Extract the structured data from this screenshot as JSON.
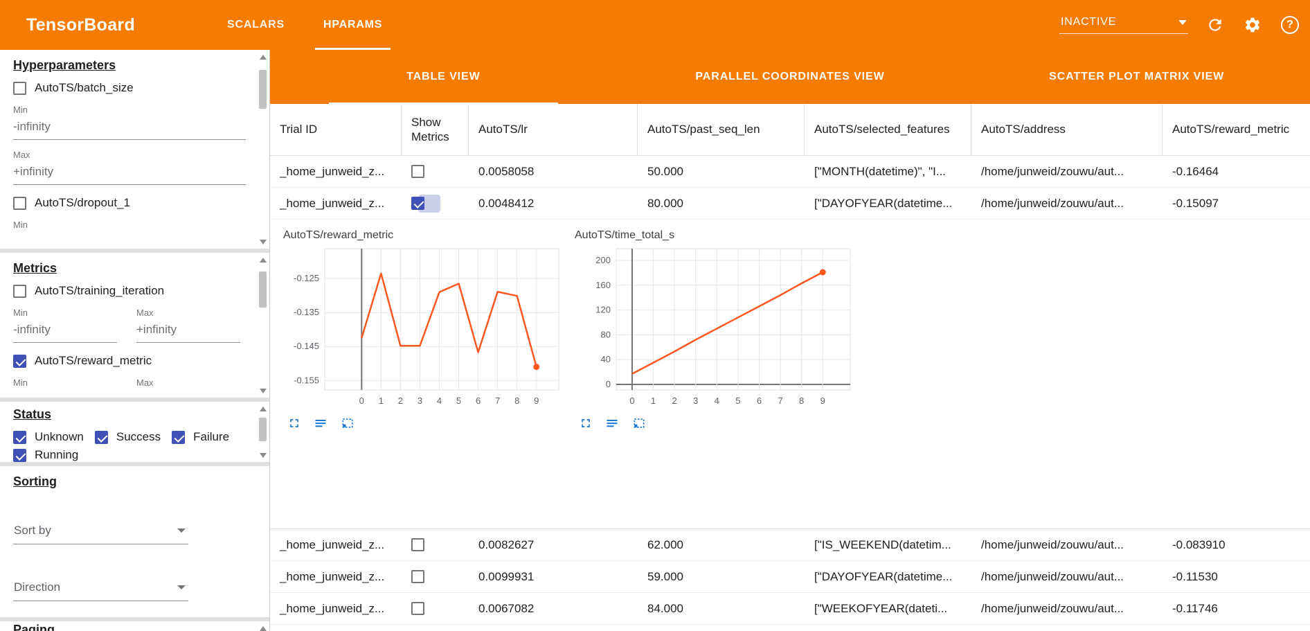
{
  "app": {
    "title": "TensorBoard",
    "nav_tabs": [
      {
        "label": "SCALARS",
        "active": false
      },
      {
        "label": "HPARAMS",
        "active": true
      }
    ],
    "run_status": {
      "value": "INACTIVE"
    }
  },
  "sidebar": {
    "hyperparameters": {
      "heading": "Hyperparameters",
      "min_label": "Min",
      "max_label": "Max",
      "min_placeholder": "-infinity",
      "max_placeholder": "+infinity",
      "items": [
        {
          "label": "AutoTS/batch_size",
          "checked": false
        },
        {
          "label": "AutoTS/dropout_1",
          "checked": false
        }
      ]
    },
    "metrics": {
      "heading": "Metrics",
      "min_label": "Min",
      "max_label": "Max",
      "min_placeholder": "-infinity",
      "max_placeholder": "+infinity",
      "items": [
        {
          "label": "AutoTS/training_iteration",
          "checked": false
        },
        {
          "label": "AutoTS/reward_metric",
          "checked": true
        }
      ]
    },
    "status": {
      "heading": "Status",
      "items": [
        {
          "label": "Unknown",
          "checked": true
        },
        {
          "label": "Success",
          "checked": true
        },
        {
          "label": "Failure",
          "checked": true
        },
        {
          "label": "Running",
          "checked": true
        }
      ]
    },
    "sorting": {
      "heading": "Sorting",
      "sort_by_label": "Sort by",
      "direction_label": "Direction"
    },
    "paging": {
      "heading": "Paging"
    }
  },
  "main": {
    "view_tabs": [
      {
        "label": "TABLE VIEW",
        "active": true
      },
      {
        "label": "PARALLEL COORDINATES VIEW",
        "active": false
      },
      {
        "label": "SCATTER PLOT MATRIX VIEW",
        "active": false
      }
    ],
    "table": {
      "columns": [
        "Trial ID",
        "Show Metrics",
        "AutoTS/lr",
        "AutoTS/past_seq_len",
        "AutoTS/selected_features",
        "AutoTS/address",
        "AutoTS/reward_metric"
      ],
      "rows": [
        {
          "trial_id": "_home_junweid_z...",
          "show_metrics": false,
          "lr": "0.0058058",
          "past_seq_len": "50.000",
          "selected_features": "[\"MONTH(datetime)\", \"I...",
          "address": "/home/junweid/zouwu/aut...",
          "reward_metric": "-0.16464"
        },
        {
          "trial_id": "_home_junweid_z...",
          "show_metrics": true,
          "lr": "0.0048412",
          "past_seq_len": "80.000",
          "selected_features": "[\"DAYOFYEAR(datetime...",
          "address": "/home/junweid/zouwu/aut...",
          "reward_metric": "-0.15097"
        },
        {
          "trial_id": "_home_junweid_z...",
          "show_metrics": false,
          "lr": "0.0082627",
          "past_seq_len": "62.000",
          "selected_features": "[\"IS_WEEKEND(datetim...",
          "address": "/home/junweid/zouwu/aut...",
          "reward_metric": "-0.083910"
        },
        {
          "trial_id": "_home_junweid_z...",
          "show_metrics": false,
          "lr": "0.0099931",
          "past_seq_len": "59.000",
          "selected_features": "[\"DAYOFYEAR(datetime...",
          "address": "/home/junweid/zouwu/aut...",
          "reward_metric": "-0.11530"
        },
        {
          "trial_id": "_home_junweid_z...",
          "show_metrics": false,
          "lr": "0.0067082",
          "past_seq_len": "84.000",
          "selected_features": "[\"WEEKOFYEAR(dateti...",
          "address": "/home/junweid/zouwu/aut...",
          "reward_metric": "-0.11746"
        }
      ]
    }
  },
  "chart_data": [
    {
      "type": "line",
      "title": "AutoTS/reward_metric",
      "x": [
        0,
        1,
        2,
        3,
        4,
        5,
        6,
        7,
        8,
        9
      ],
      "values": [
        -0.1425,
        -0.1235,
        -0.1448,
        -0.1448,
        -0.129,
        -0.1265,
        -0.1467,
        -0.1289,
        -0.1301,
        -0.151
      ],
      "xticks": [
        0,
        1,
        2,
        3,
        4,
        5,
        6,
        7,
        8,
        9
      ],
      "yticks": [
        -0.125,
        -0.135,
        -0.145,
        -0.155
      ],
      "xlim": [
        -1.9,
        10.15
      ],
      "ylim": [
        -0.1578,
        -0.1162
      ],
      "xlabel": "",
      "ylabel": "",
      "grid": true,
      "legend": "none",
      "end_marker": true,
      "line_color": "#ff5722"
    },
    {
      "type": "line",
      "title": "AutoTS/time_total_s",
      "x": [
        0,
        1,
        2,
        3,
        4,
        5,
        6,
        7,
        8,
        9
      ],
      "values": [
        17,
        35,
        53,
        72,
        90,
        108,
        126,
        144,
        163,
        181
      ],
      "xticks": [
        0,
        1,
        2,
        3,
        4,
        5,
        6,
        7,
        8,
        9
      ],
      "yticks": [
        0,
        40,
        80,
        120,
        160,
        200
      ],
      "xlim": [
        -0.75,
        10.3
      ],
      "ylim": [
        -9,
        219
      ],
      "xlabel": "",
      "ylabel": "",
      "grid": true,
      "legend": "none",
      "end_marker": true,
      "line_color": "#ff5722"
    }
  ],
  "colors": {
    "header_orange": "#f57c00",
    "checkbox_blue": "#3f51b5",
    "chart_line_orange": "#ff5722",
    "chart_tool_blue": "#1976d2"
  }
}
